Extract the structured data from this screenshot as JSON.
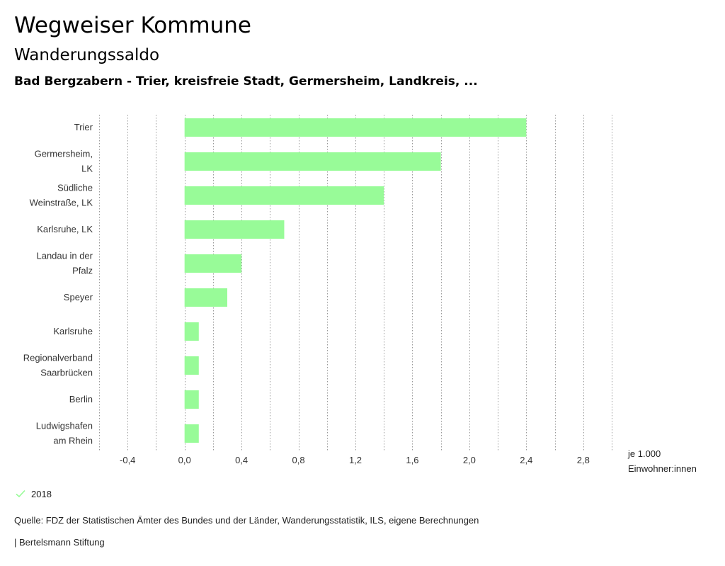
{
  "header": {
    "title": "Wegweiser Kommune",
    "subtitle": "Wanderungssaldo",
    "selection": "Bad Bergzabern - Trier, kreisfreie Stadt, Germersheim, Landkreis, ..."
  },
  "colors": {
    "bar": "#98fb98",
    "grid": "#999999"
  },
  "chart_data": {
    "type": "bar",
    "orientation": "horizontal",
    "title": "Wanderungssaldo",
    "categories": [
      [
        "Trier"
      ],
      [
        "Germersheim,",
        "LK"
      ],
      [
        "Südliche",
        "Weinstraße, LK"
      ],
      [
        "Karlsruhe, LK"
      ],
      [
        "Landau in der",
        "Pfalz"
      ],
      [
        "Speyer"
      ],
      [
        "Karlsruhe"
      ],
      [
        "Regionalverband",
        "Saarbrücken"
      ],
      [
        "Berlin"
      ],
      [
        "Ludwigshafen",
        "am Rhein"
      ]
    ],
    "series": [
      {
        "name": "2018",
        "values": [
          2.4,
          1.8,
          1.4,
          0.7,
          0.4,
          0.3,
          0.1,
          0.1,
          0.1,
          0.1
        ]
      }
    ],
    "xlim": [
      -0.6,
      3.0
    ],
    "xticks": [
      -0.4,
      0.0,
      0.4,
      0.8,
      1.2,
      1.6,
      2.0,
      2.4,
      2.8
    ],
    "tick_labels": [
      "-0,4",
      "0,0",
      "0,4",
      "0,8",
      "1,2",
      "1,6",
      "2,0",
      "2,4",
      "2,8"
    ],
    "grid_step": 0.2,
    "xlabel": [
      "je 1.000",
      "Einwohner:innen"
    ],
    "legend": "2018"
  },
  "footer": {
    "source": "Quelle: FDZ der Statistischen Ämter des Bundes und der Länder, Wanderungsstatistik, ILS, eigene Berechnungen",
    "brand": "| Bertelsmann Stiftung"
  }
}
